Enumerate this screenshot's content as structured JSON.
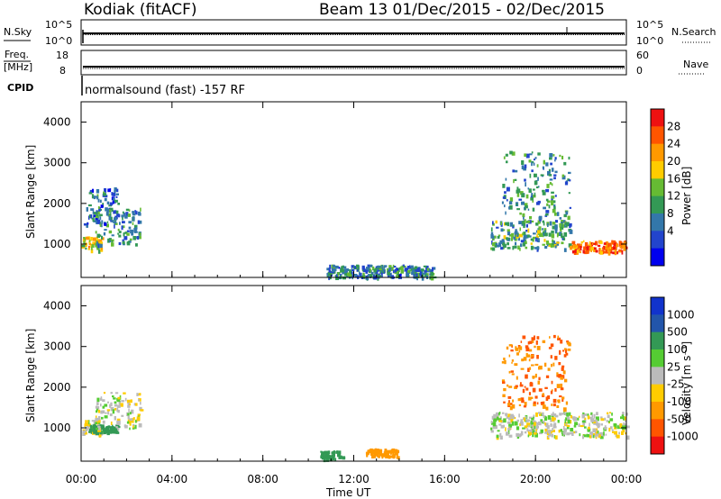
{
  "header": {
    "station": "Kodiak (fitACF)",
    "beam_dates": "Beam 13  01/Dec/2015 - 02/Dec/2015",
    "cpid_text": "normalsound (fast) -157 RF"
  },
  "small_panels": {
    "nsky_label": "N.Sky",
    "nsearch_label": "N.Search",
    "nsky_ticks": [
      "10^5",
      "10^0"
    ],
    "nsearch_ticks": [
      "10^5",
      "10^0"
    ],
    "freq_label_top": "Freq.",
    "freq_label_bottom": "[MHz]",
    "freq_ticks": [
      "18",
      "8"
    ],
    "nave_label": "Nave",
    "nave_ticks": [
      "60",
      "0"
    ],
    "cpid_label": "CPID"
  },
  "axes": {
    "ylabel": "Slant Range [km]",
    "yticks": [
      "4000",
      "3000",
      "2000",
      "1000"
    ],
    "xticks": [
      "00:00",
      "04:00",
      "08:00",
      "12:00",
      "16:00",
      "20:00",
      "00:00"
    ],
    "xlabel": "Time UT"
  },
  "colorbars": {
    "power": {
      "label": "Power [dB]",
      "ticks": [
        "28",
        "24",
        "20",
        "16",
        "12",
        "8",
        "4"
      ],
      "colors": [
        "#ee1111",
        "#ff5500",
        "#ff9900",
        "#ffcc00",
        "#66bb33",
        "#339955",
        "#3377aa",
        "#2244cc",
        "#0000ee"
      ]
    },
    "velocity": {
      "label": "Velocity [m s⁻¹]",
      "ticks": [
        "1000",
        "500",
        "100",
        "25",
        "-25",
        "-100",
        "-500",
        "-1000"
      ],
      "colors": [
        "#1133cc",
        "#2255aa",
        "#339955",
        "#55cc33",
        "#bbbbbb",
        "#ffcc00",
        "#ff9900",
        "#ff5500",
        "#ee1111"
      ]
    }
  },
  "chart_data": {
    "type": "heatmap",
    "title": "Kodiak (fitACF)",
    "subtitle": "Beam 13  01/Dec/2015 - 02/Dec/2015",
    "xlabel": "Time UT",
    "ylabel": "Slant Range [km]",
    "x_range_hours": [
      0,
      24
    ],
    "y_range_km": [
      180,
      4500
    ],
    "panels": [
      {
        "name": "Power [dB]",
        "scale": [
          0,
          30
        ],
        "echo_regions": [
          {
            "t_start": 0.0,
            "t_end": 0.9,
            "range_km": [
              850,
              1200
            ],
            "value": 18
          },
          {
            "t_start": 0.6,
            "t_end": 2.6,
            "range_km": [
              1000,
              1900
            ],
            "value": 10
          },
          {
            "t_start": 0.1,
            "t_end": 1.6,
            "range_km": [
              1500,
              2400
            ],
            "value": 8
          },
          {
            "t_start": 10.8,
            "t_end": 15.5,
            "range_km": [
              200,
              500
            ],
            "value": 9
          },
          {
            "t_start": 18.0,
            "t_end": 21.5,
            "range_km": [
              900,
              1600
            ],
            "value": 12
          },
          {
            "t_start": 21.5,
            "t_end": 24.0,
            "range_km": [
              800,
              1100
            ],
            "value": 24
          },
          {
            "t_start": 18.5,
            "t_end": 21.5,
            "range_km": [
              1500,
              3300
            ],
            "value": 10
          }
        ]
      },
      {
        "name": "Velocity [m s-1]",
        "scale": [
          -1000,
          1000
        ],
        "echo_regions": [
          {
            "t_start": 0.0,
            "t_end": 0.9,
            "range_km": [
              850,
              1200
            ],
            "value": 0
          },
          {
            "t_start": 0.3,
            "t_end": 1.6,
            "range_km": [
              900,
              1100
            ],
            "value": 60
          },
          {
            "t_start": 0.6,
            "t_end": 2.6,
            "range_km": [
              1000,
              1900
            ],
            "value": 0
          },
          {
            "t_start": 10.5,
            "t_end": 11.5,
            "range_km": [
              250,
              450
            ],
            "value": 60
          },
          {
            "t_start": 12.5,
            "t_end": 14.0,
            "range_km": [
              300,
              500
            ],
            "value": -60
          },
          {
            "t_start": 18.0,
            "t_end": 24.0,
            "range_km": [
              800,
              1400
            ],
            "value": 0
          },
          {
            "t_start": 18.5,
            "t_end": 21.5,
            "range_km": [
              1500,
              3300
            ],
            "value": -100
          }
        ]
      }
    ]
  }
}
